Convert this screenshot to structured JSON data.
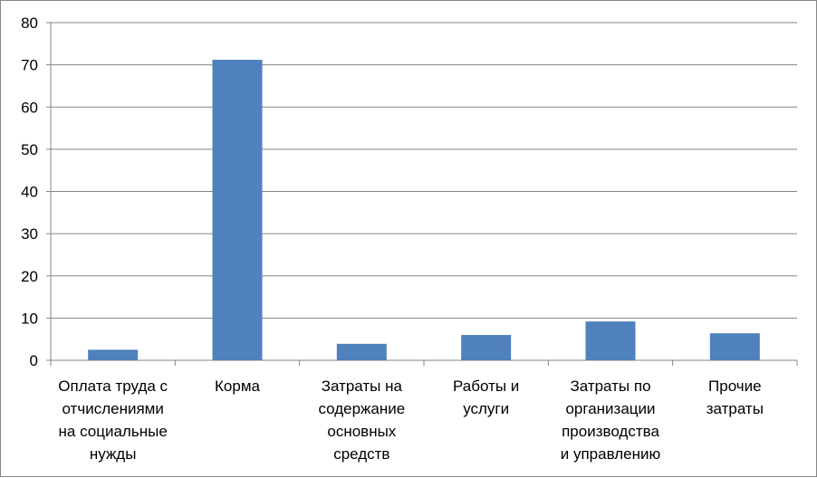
{
  "chart_data": {
    "type": "bar",
    "title": "",
    "xlabel": "",
    "ylabel": "",
    "ylim": [
      0,
      80
    ],
    "yticks": [
      0,
      10,
      20,
      30,
      40,
      50,
      60,
      70,
      80
    ],
    "grid": true,
    "legend": "none",
    "bar_color": "#4f81bd",
    "categories": [
      [
        "Оплата труда с",
        "отчислениями",
        "на социальные",
        "нужды"
      ],
      [
        "Корма"
      ],
      [
        "Затраты на",
        "содержание",
        "основных",
        "средств"
      ],
      [
        "Работы и",
        "услуги"
      ],
      [
        "Затраты по",
        "организации",
        "производства",
        "и управлению"
      ],
      [
        "Прочие",
        "затраты"
      ]
    ],
    "values": [
      2.5,
      71.2,
      3.9,
      6.0,
      9.2,
      6.4
    ]
  }
}
